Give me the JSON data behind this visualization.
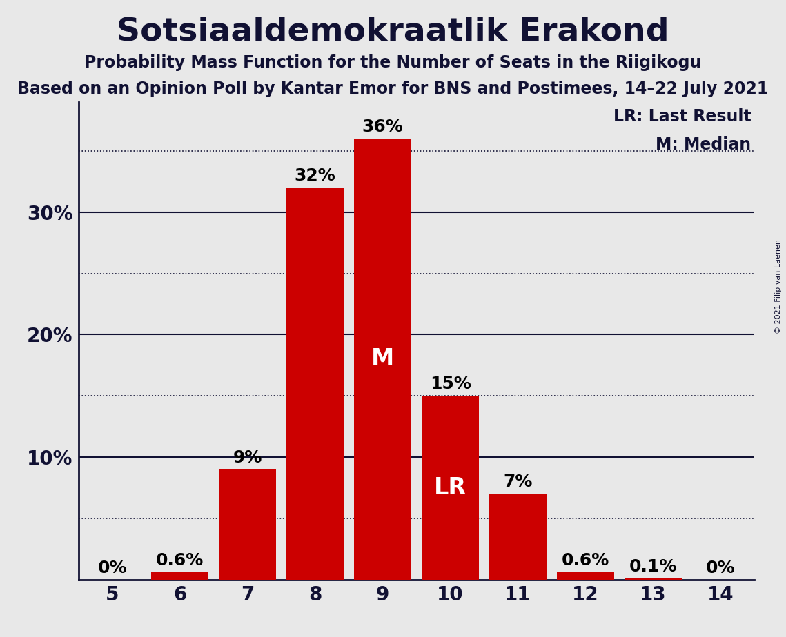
{
  "title": "Sotsiaaldemokraatlik Erakond",
  "subtitle1": "Probability Mass Function for the Number of Seats in the Riigikogu",
  "subtitle2": "Based on an Opinion Poll by Kantar Emor for BNS and Postimees, 14–22 July 2021",
  "copyright": "© 2021 Filip van Laenen",
  "categories": [
    5,
    6,
    7,
    8,
    9,
    10,
    11,
    12,
    13,
    14
  ],
  "values": [
    0.0,
    0.6,
    9.0,
    32.0,
    36.0,
    15.0,
    7.0,
    0.6,
    0.1,
    0.0
  ],
  "labels": [
    "0%",
    "0.6%",
    "9%",
    "32%",
    "36%",
    "15%",
    "7%",
    "0.6%",
    "0.1%",
    "0%"
  ],
  "bar_color": "#cc0000",
  "background_color": "#e8e8e8",
  "median_bar": 9,
  "last_result_bar": 10,
  "median_label": "M",
  "last_result_label": "LR",
  "legend_lr": "LR: Last Result",
  "legend_m": "M: Median",
  "ytick_positions": [
    10,
    20,
    30
  ],
  "ytick_labels": [
    "10%",
    "20%",
    "30%"
  ],
  "ylim": [
    0,
    39
  ],
  "title_fontsize": 34,
  "subtitle1_fontsize": 17,
  "subtitle2_fontsize": 17,
  "axis_fontsize": 20,
  "legend_fontsize": 17,
  "bar_label_fontsize": 18,
  "inner_label_fontsize": 24,
  "solid_gridlines": [
    10,
    20,
    30
  ],
  "dotted_gridlines": [
    5,
    15,
    25,
    35
  ]
}
